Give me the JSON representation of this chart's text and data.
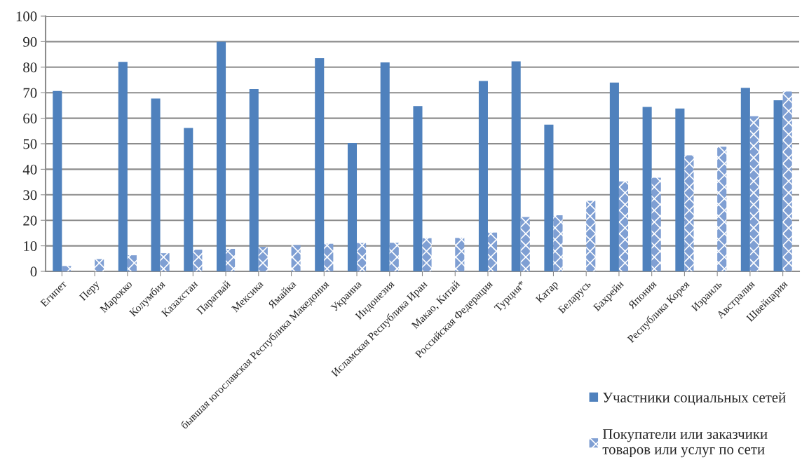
{
  "chart_data": {
    "type": "bar",
    "categories": [
      "Египет",
      "Перу",
      "Марокко",
      "Колумбия",
      "Казахстан",
      "Парагвай",
      "Мексика",
      "Ямайка",
      "бывшая югославская Республика Македония",
      "Украина",
      "Индонезия",
      "Исламская Республика Иран",
      "Макао, Китай",
      "Российская Федерация",
      "Турция*",
      "Катар",
      "Беларусь",
      "Бахрейн",
      "Япония",
      "Республика Корея",
      "Израиль",
      "Австралия",
      "Швейцария"
    ],
    "series": [
      {
        "name": "Участники социальных сетей",
        "color": "#4f81bd",
        "values": [
          70.7,
          null,
          82.1,
          67.7,
          56.2,
          90.0,
          71.4,
          null,
          83.5,
          50.3,
          81.9,
          64.8,
          null,
          74.6,
          82.3,
          57.5,
          null,
          74.0,
          64.4,
          63.8,
          null,
          71.9,
          67.0
        ]
      },
      {
        "name": "Покупатели или заказчики товаров или услуг по сети",
        "color": "#7f9fd3",
        "values": [
          2.1,
          4.8,
          6.3,
          7.1,
          8.5,
          8.8,
          9.6,
          10.3,
          10.8,
          11.1,
          11.2,
          13.0,
          13.1,
          15.2,
          21.3,
          22.0,
          27.6,
          35.2,
          36.7,
          45.5,
          48.8,
          60.8,
          70.5
        ]
      }
    ],
    "ylim": [
      0,
      100
    ],
    "yticks": [
      0,
      10,
      20,
      30,
      40,
      50,
      60,
      70,
      80,
      90,
      100
    ],
    "grid": "y",
    "legend": "bottom right"
  }
}
